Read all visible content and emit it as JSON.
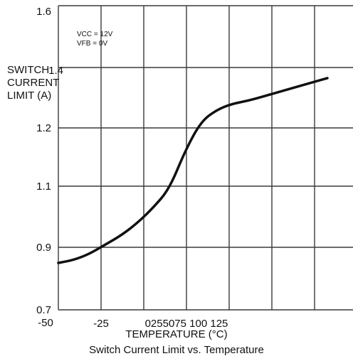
{
  "chart_data": {
    "type": "line",
    "title": "Switch Current Limit vs. Temperature",
    "xlabel": "TEMPERATURE (°C)",
    "ylabel_lines": [
      "SWITCH",
      "CURRENT",
      "LIMIT (A)"
    ],
    "x_tick_labels": [
      "-50",
      "-25",
      "0255075 100 125"
    ],
    "y_tick_labels": [
      "0.7",
      "0.9",
      "1.1",
      "1.2",
      "1.4",
      "1.6"
    ],
    "xlim": [
      -50,
      150
    ],
    "ylim": [
      0.7,
      1.6
    ],
    "grid": true,
    "annotations": [
      "VCC = 12V",
      "VFB = 0V"
    ],
    "series": [
      {
        "values": [
          {
            "x": -50,
            "y": 0.85
          },
          {
            "x": -40,
            "y": 0.86
          },
          {
            "x": -30,
            "y": 0.88
          },
          {
            "x": -20,
            "y": 0.91
          },
          {
            "x": -10,
            "y": 0.94
          },
          {
            "x": 0,
            "y": 0.98
          },
          {
            "x": 10,
            "y": 1.03
          },
          {
            "x": 20,
            "y": 1.09
          },
          {
            "x": 30,
            "y": 1.16
          },
          {
            "x": 40,
            "y": 1.22
          },
          {
            "x": 50,
            "y": 1.26
          },
          {
            "x": 60,
            "y": 1.28
          },
          {
            "x": 70,
            "y": 1.29
          },
          {
            "x": 80,
            "y": 1.305
          },
          {
            "x": 90,
            "y": 1.32
          },
          {
            "x": 100,
            "y": 1.335
          },
          {
            "x": 110,
            "y": 1.35
          },
          {
            "x": 120,
            "y": 1.365
          }
        ]
      }
    ]
  }
}
